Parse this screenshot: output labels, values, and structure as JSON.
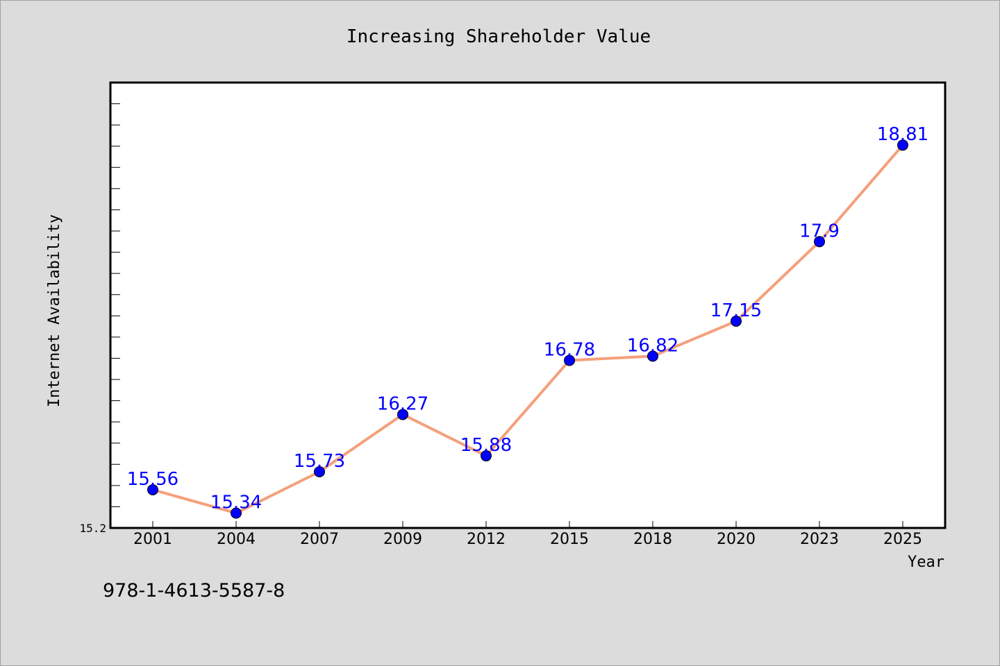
{
  "chart_data": {
    "type": "line",
    "title": "Increasing Shareholder Value",
    "xlabel": "Year",
    "ylabel": "Internet Availability",
    "categories": [
      "2001",
      "2004",
      "2007",
      "2009",
      "2012",
      "2015",
      "2018",
      "2020",
      "2023",
      "2025"
    ],
    "series": [
      {
        "values": [
          15.56,
          15.34,
          15.73,
          16.27,
          15.88,
          16.78,
          16.82,
          17.15,
          17.9,
          18.81
        ]
      }
    ],
    "data_labels": [
      "15.56",
      "15.34",
      "15.73",
      "16.27",
      "15.88",
      "16.78",
      "16.82",
      "17.15",
      "17.9",
      "18.81"
    ],
    "ytick_labels": [
      "15.2"
    ],
    "ylim": [
      15.2,
      19.4
    ],
    "grid": false,
    "line_color": "#f4a07c",
    "marker_color": "#0000ff",
    "label_color": "#0000ff"
  },
  "footer": {
    "code": "978-1-4613-5587-8"
  }
}
